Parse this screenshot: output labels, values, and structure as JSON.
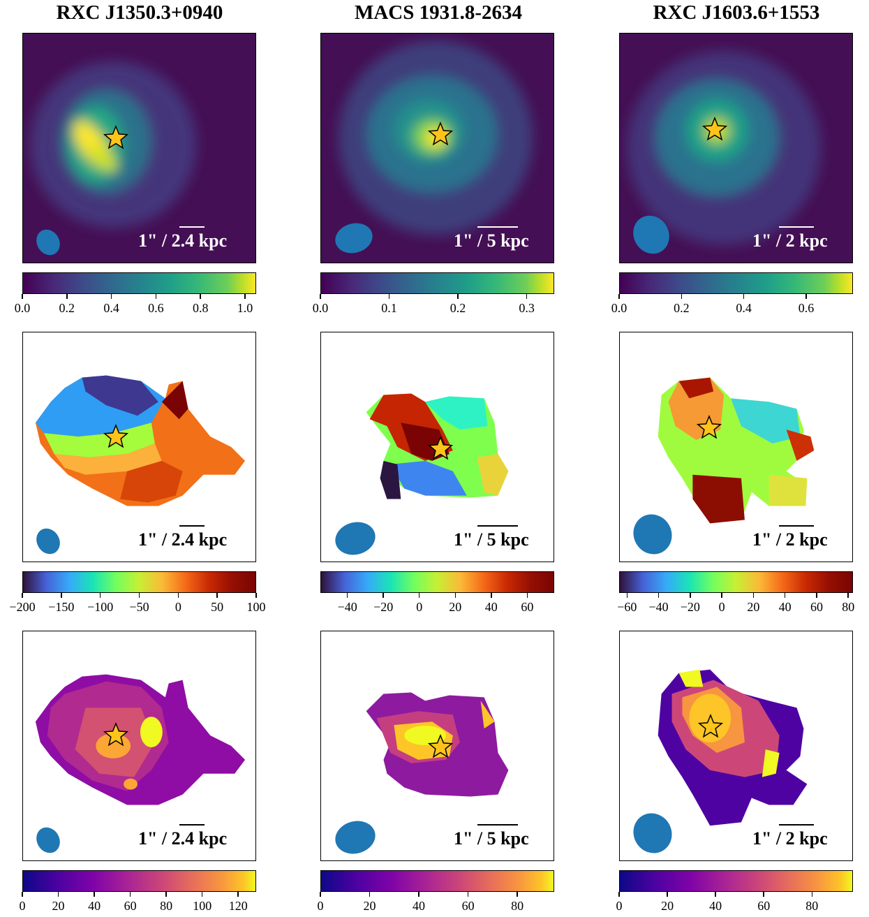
{
  "columns": [
    {
      "title": "RXC J1350.3+0940",
      "scale_label": "1\" / 2.4 kpc"
    },
    {
      "title": "MACS 1931.8-2634",
      "scale_label": "1\" / 5 kpc"
    },
    {
      "title": "RXC J1603.6+1553",
      "scale_label": "1\" / 2 kpc"
    }
  ],
  "chart_data": [
    {
      "type": "heatmap",
      "row": "flux",
      "column": "RXC J1350.3+0940",
      "colormap": "viridis",
      "colorbar_range": [
        0,
        1.05
      ],
      "colorbar_ticks": [
        "0.0",
        "0.2",
        "0.4",
        "0.6",
        "0.8",
        "1.0"
      ],
      "colorbar_tick_values": [
        0,
        0.2,
        0.4,
        0.6,
        0.8,
        1.0
      ],
      "scale_label": "1\" / 2.4 kpc"
    },
    {
      "type": "heatmap",
      "row": "flux",
      "column": "MACS 1931.8-2634",
      "colormap": "viridis",
      "colorbar_range": [
        0,
        0.34
      ],
      "colorbar_ticks": [
        "0.0",
        "0.1",
        "0.2",
        "0.3"
      ],
      "colorbar_tick_values": [
        0,
        0.1,
        0.2,
        0.3
      ],
      "scale_label": "1\" / 5 kpc"
    },
    {
      "type": "heatmap",
      "row": "flux",
      "column": "RXC J1603.6+1553",
      "colormap": "viridis",
      "colorbar_range": [
        0,
        0.75
      ],
      "colorbar_ticks": [
        "0.0",
        "0.2",
        "0.4",
        "0.6"
      ],
      "colorbar_tick_values": [
        0,
        0.2,
        0.4,
        0.6
      ],
      "scale_label": "1\" / 2 kpc"
    },
    {
      "type": "heatmap",
      "row": "velocity",
      "column": "RXC J1350.3+0940",
      "colormap": "turbo",
      "colorbar_range": [
        -200,
        100
      ],
      "colorbar_ticks": [
        "−200",
        "−150",
        "−100",
        "−50",
        "0",
        "50",
        "100"
      ],
      "colorbar_tick_values": [
        -200,
        -150,
        -100,
        -50,
        0,
        50,
        100
      ],
      "scale_label": "1\" / 2.4 kpc"
    },
    {
      "type": "heatmap",
      "row": "velocity",
      "column": "MACS 1931.8-2634",
      "colormap": "turbo",
      "colorbar_range": [
        -55,
        75
      ],
      "colorbar_ticks": [
        "−40",
        "−20",
        "0",
        "20",
        "40",
        "60"
      ],
      "colorbar_tick_values": [
        -40,
        -20,
        0,
        20,
        40,
        60
      ],
      "scale_label": "1\" / 5 kpc"
    },
    {
      "type": "heatmap",
      "row": "velocity",
      "column": "RXC J1603.6+1553",
      "colormap": "turbo",
      "colorbar_range": [
        -65,
        83
      ],
      "colorbar_ticks": [
        "−60",
        "−40",
        "−20",
        "0",
        "20",
        "40",
        "60",
        "80"
      ],
      "colorbar_tick_values": [
        -60,
        -40,
        -20,
        0,
        20,
        40,
        60,
        80
      ],
      "scale_label": "1\" / 2 kpc"
    },
    {
      "type": "heatmap",
      "row": "dispersion",
      "column": "RXC J1350.3+0940",
      "colormap": "plasma",
      "colorbar_range": [
        0,
        130
      ],
      "colorbar_ticks": [
        "0",
        "20",
        "40",
        "60",
        "80",
        "100",
        "120"
      ],
      "colorbar_tick_values": [
        0,
        20,
        40,
        60,
        80,
        100,
        120
      ],
      "scale_label": "1\" / 2.4 kpc"
    },
    {
      "type": "heatmap",
      "row": "dispersion",
      "column": "MACS 1931.8-2634",
      "colormap": "plasma",
      "colorbar_range": [
        0,
        95
      ],
      "colorbar_ticks": [
        "0",
        "20",
        "40",
        "60",
        "80"
      ],
      "colorbar_tick_values": [
        0,
        20,
        40,
        60,
        80
      ],
      "scale_label": "1\" / 5 kpc"
    },
    {
      "type": "heatmap",
      "row": "dispersion",
      "column": "RXC J1603.6+1553",
      "colormap": "plasma",
      "colorbar_range": [
        0,
        97
      ],
      "colorbar_ticks": [
        "0",
        "20",
        "40",
        "60",
        "80"
      ],
      "colorbar_tick_values": [
        0,
        20,
        40,
        60,
        80
      ],
      "scale_label": "1\" / 2 kpc"
    }
  ],
  "colors": {
    "star": "#ffc41a",
    "beam": "#1f77b4",
    "flux_background": "#440f54"
  }
}
